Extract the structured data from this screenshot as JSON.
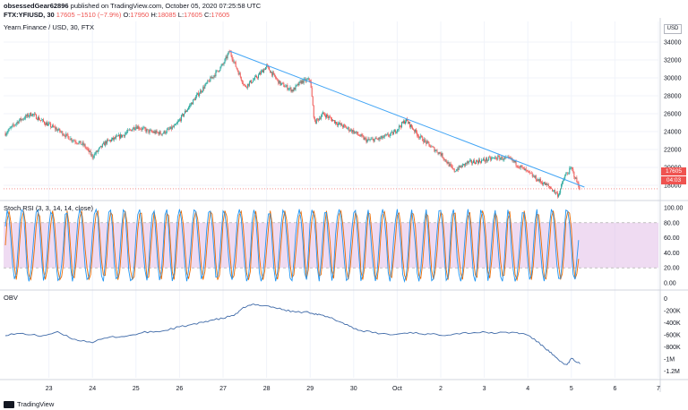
{
  "publisher": {
    "user": "obsessedGear62896",
    "text": "published on TradingView.com, October 05, 2020 07:25:58 UTC"
  },
  "symbol": {
    "code": "FTX:YFIUSD, 30",
    "last": "17605",
    "change": "−1510 (−7.9%)",
    "o_label": "O:",
    "o_val": "17950",
    "h_label": "H:",
    "h_val": "18085",
    "l_label": "L:",
    "l_val": "17605",
    "c_label": "C:",
    "c_val": "17605"
  },
  "main_title": "Yearn.Finance / USD, 30, FTX",
  "currency_box": "USD",
  "price_tag": "17605",
  "time_tag": "04:03",
  "stoch_title": "Stoch RSI (3, 3, 14, 14, close)",
  "obv_title": "OBV",
  "footer_brand": "TradingView",
  "colors": {
    "up": "#26a69a",
    "down": "#ef5350",
    "trendline": "#42a5f5",
    "stoch_k": "#2196f3",
    "stoch_d": "#ef6c00",
    "band_fill": "#e1bee7",
    "obv_line": "#3f6aa8"
  },
  "chart_data": [
    {
      "type": "candlestick",
      "title": "Yearn.Finance / USD, 30, FTX",
      "y_ticks": [
        "34000",
        "32000",
        "30000",
        "28000",
        "26000",
        "24000",
        "22000",
        "20000",
        "18000"
      ],
      "y_range": [
        16500,
        35500
      ],
      "x_ticks": [
        "23",
        "24",
        "25",
        "26",
        "27",
        "28",
        "29",
        "30",
        "Oct",
        "2",
        "3",
        "4",
        "5",
        "6",
        "7"
      ],
      "close_path": [
        [
          22.0,
          23800
        ],
        [
          22.3,
          25200
        ],
        [
          22.6,
          26000
        ],
        [
          22.9,
          25000
        ],
        [
          23.2,
          24200
        ],
        [
          23.5,
          23200
        ],
        [
          23.8,
          22500
        ],
        [
          24.0,
          21200
        ],
        [
          24.3,
          22800
        ],
        [
          24.7,
          23600
        ],
        [
          25.0,
          24600
        ],
        [
          25.3,
          24000
        ],
        [
          25.6,
          23800
        ],
        [
          25.9,
          24600
        ],
        [
          26.1,
          26000
        ],
        [
          26.4,
          28000
        ],
        [
          26.7,
          29800
        ],
        [
          27.0,
          31500
        ],
        [
          27.15,
          33000
        ],
        [
          27.3,
          31200
        ],
        [
          27.5,
          29000
        ],
        [
          27.8,
          30200
        ],
        [
          28.0,
          31300
        ],
        [
          28.3,
          29400
        ],
        [
          28.6,
          28600
        ],
        [
          28.8,
          29600
        ],
        [
          29.0,
          29800
        ],
        [
          29.1,
          25000
        ],
        [
          29.3,
          26000
        ],
        [
          29.6,
          25000
        ],
        [
          30.0,
          24000
        ],
        [
          30.3,
          23000
        ],
        [
          30.6,
          23200
        ],
        [
          30.9,
          23800
        ],
        [
          31.2,
          25300
        ],
        [
          31.5,
          23500
        ],
        [
          31.8,
          22200
        ],
        [
          32.0,
          21500
        ],
        [
          32.3,
          19600
        ],
        [
          32.6,
          20500
        ],
        [
          33.0,
          20800
        ],
        [
          33.3,
          21100
        ],
        [
          33.6,
          20900
        ],
        [
          33.9,
          19800
        ],
        [
          34.2,
          18700
        ],
        [
          34.5,
          17800
        ],
        [
          34.7,
          16900
        ],
        [
          34.85,
          19000
        ],
        [
          35.0,
          19900
        ],
        [
          35.1,
          18700
        ],
        [
          35.2,
          17605
        ]
      ],
      "trendline": {
        "from": [
          27.15,
          33000
        ],
        "to": [
          35.3,
          17800
        ]
      },
      "last_price": 17605
    },
    {
      "type": "line",
      "title": "Stoch RSI (3, 3, 14, 14, close)",
      "series": [
        {
          "name": "K"
        },
        {
          "name": "D"
        }
      ],
      "y_ticks": [
        "100.00",
        "80.00",
        "60.00",
        "40.00",
        "20.00",
        "0.00"
      ],
      "y_range": [
        0,
        100
      ],
      "upper_band": 80,
      "lower_band": 20
    },
    {
      "type": "line",
      "title": "OBV",
      "y_ticks": [
        "0",
        "-200K",
        "-400K",
        "-600K",
        "-800K",
        "-1M",
        "-1.2M"
      ],
      "y_range": [
        -1250000,
        50000
      ],
      "points": [
        [
          22.0,
          -600000
        ],
        [
          22.4,
          -580000
        ],
        [
          22.8,
          -620000
        ],
        [
          23.2,
          -560000
        ],
        [
          23.6,
          -680000
        ],
        [
          24.0,
          -720000
        ],
        [
          24.4,
          -640000
        ],
        [
          24.8,
          -620000
        ],
        [
          25.2,
          -560000
        ],
        [
          25.6,
          -540000
        ],
        [
          26.0,
          -470000
        ],
        [
          26.4,
          -420000
        ],
        [
          26.7,
          -360000
        ],
        [
          27.0,
          -330000
        ],
        [
          27.3,
          -260000
        ],
        [
          27.5,
          -140000
        ],
        [
          27.7,
          -100000
        ],
        [
          28.0,
          -120000
        ],
        [
          28.3,
          -170000
        ],
        [
          28.6,
          -220000
        ],
        [
          29.0,
          -230000
        ],
        [
          29.2,
          -270000
        ],
        [
          29.5,
          -330000
        ],
        [
          29.8,
          -420000
        ],
        [
          30.1,
          -520000
        ],
        [
          30.5,
          -570000
        ],
        [
          30.9,
          -600000
        ],
        [
          31.3,
          -560000
        ],
        [
          31.7,
          -590000
        ],
        [
          32.1,
          -600000
        ],
        [
          32.5,
          -570000
        ],
        [
          32.9,
          -560000
        ],
        [
          33.3,
          -570000
        ],
        [
          33.7,
          -560000
        ],
        [
          34.0,
          -600000
        ],
        [
          34.3,
          -760000
        ],
        [
          34.5,
          -880000
        ],
        [
          34.7,
          -1020000
        ],
        [
          34.9,
          -1100000
        ],
        [
          35.0,
          -990000
        ],
        [
          35.2,
          -1080000
        ]
      ]
    }
  ]
}
